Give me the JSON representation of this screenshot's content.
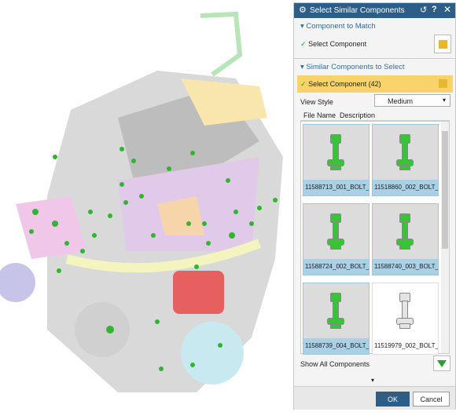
{
  "dialog": {
    "title": "Select Similar Components",
    "section_match": {
      "title": "Component to Match",
      "row": "Select Component"
    },
    "section_similar": {
      "title": "Similar Components to Select",
      "row": "Select Component (42)"
    },
    "view_style": {
      "label": "View Style",
      "value": "Medium"
    },
    "tabs": [
      "File Name",
      "Description"
    ],
    "items": [
      "11588713_001_BOLT_...",
      "11518860_002_BOLT_...",
      "11588724_002_BOLT_...",
      "11588740_003_BOLT_...",
      "11588739_004_BOLT_...",
      "11519979_002_BOLT_..."
    ],
    "show_all": "Show All Components",
    "buttons": {
      "ok": "OK",
      "cancel": "Cancel"
    }
  }
}
